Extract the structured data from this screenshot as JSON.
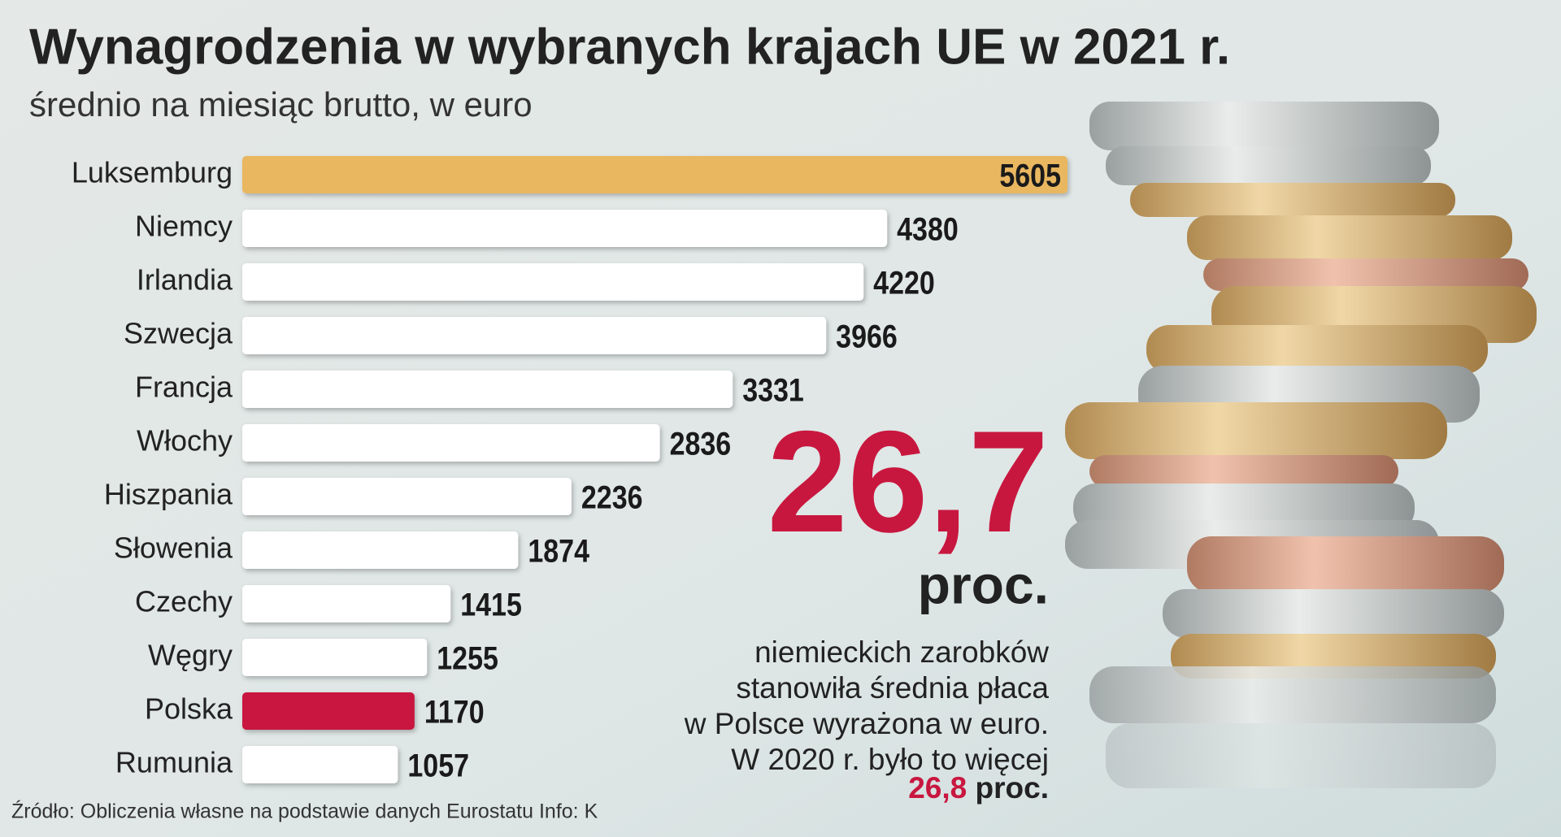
{
  "chart_data": {
    "type": "bar",
    "orientation": "horizontal",
    "title": "Wynagrodzenia w wybranych krajach UE w 2021 r.",
    "subtitle": "średnio na miesiąc brutto, w euro",
    "categories": [
      "Luksemburg",
      "Niemcy",
      "Irlandia",
      "Szwecja",
      "Francja",
      "Włochy",
      "Hiszpania",
      "Słowenia",
      "Czechy",
      "Węgry",
      "Polska",
      "Rumunia"
    ],
    "values": [
      5605,
      4380,
      4220,
      3966,
      3331,
      2836,
      2236,
      1874,
      1415,
      1255,
      1170,
      1057
    ],
    "colors": [
      "#e9b760",
      "#ffffff",
      "#ffffff",
      "#ffffff",
      "#ffffff",
      "#ffffff",
      "#ffffff",
      "#ffffff",
      "#ffffff",
      "#ffffff",
      "#c8173f",
      "#ffffff"
    ],
    "annotation": {
      "value": "26,7",
      "unit": "proc.",
      "lines": [
        "niemieckich zarobków",
        "stanowiła średnia płaca",
        "w Polsce wyrażona w euro.",
        "W 2020 r. było to więcej"
      ],
      "footer_value": "26,8",
      "footer_unit": "proc."
    },
    "source": "Źródło: Obliczenia własne na podstawie danych Eurostatu  Info: K"
  }
}
